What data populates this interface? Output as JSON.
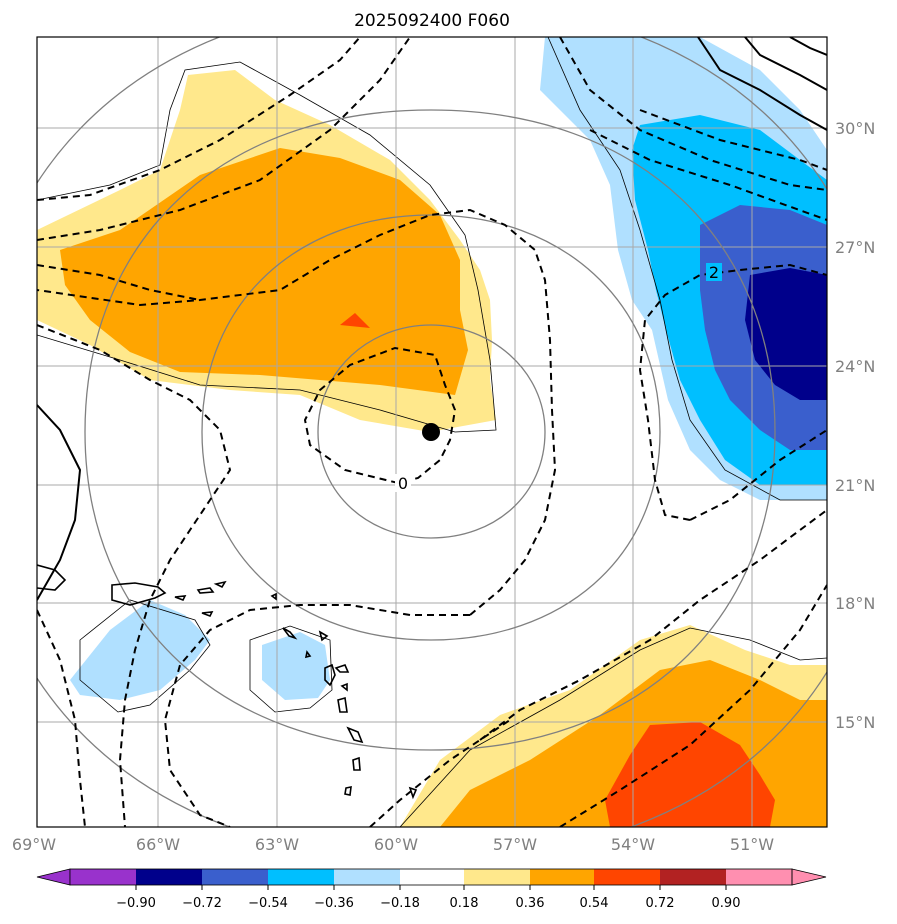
{
  "title": "2025092400 F060",
  "map": {
    "lon_labels": [
      "69°W",
      "66°W",
      "63°W",
      "60°W",
      "57°W",
      "54°W",
      "51°W"
    ],
    "lat_labels": [
      "30°N",
      "27°N",
      "24°N",
      "21°N",
      "18°N",
      "15°N"
    ],
    "contour_labels": [
      "0",
      "2"
    ],
    "storm_center": {
      "lon": "59.1°W",
      "lat": "22.3°N"
    }
  },
  "colorbar": {
    "ticks": [
      "−0.90",
      "−0.72",
      "−0.54",
      "−0.36",
      "−0.18",
      "0.18",
      "0.36",
      "0.54",
      "0.72",
      "0.90"
    ],
    "colors": [
      "#9932cc",
      "#00008b",
      "#3a5fcd",
      "#00bfff",
      "#b0e0ff",
      "#ffffff",
      "#ffe88c",
      "#ffa500",
      "#ff4500",
      "#b22222",
      "#ff8fb0"
    ]
  },
  "fill_colors": {
    "light_yellow": "#ffe88c",
    "orange": "#ffa500",
    "red_orange": "#ff4500",
    "light_blue": "#b0e0ff",
    "sky_blue": "#00bfff",
    "royal_blue": "#3a5fcd",
    "navy": "#00008b"
  }
}
